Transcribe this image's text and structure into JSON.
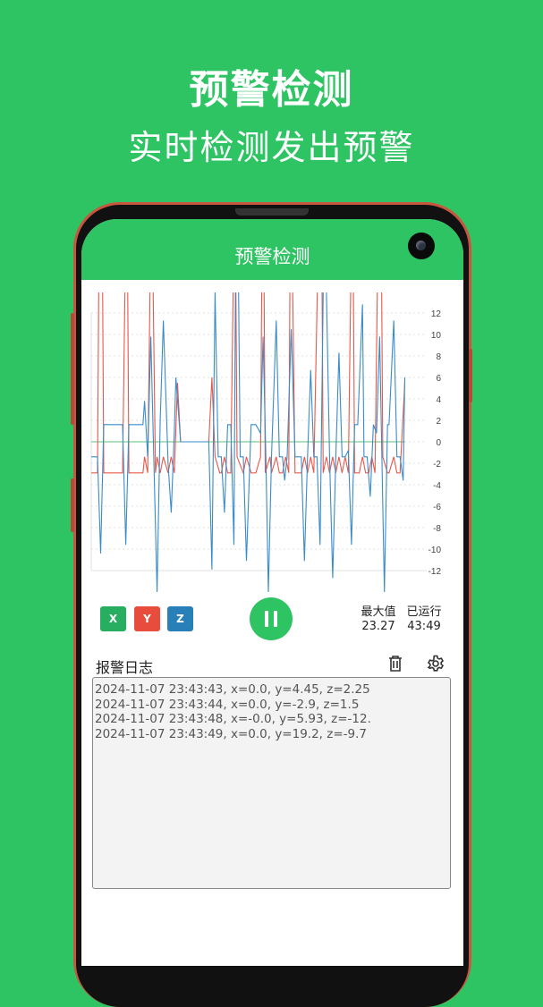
{
  "hero": {
    "title": "预警检测",
    "subtitle": "实时检测发出预警"
  },
  "app": {
    "title": "预警检测"
  },
  "colors": {
    "accent": "#2ec463",
    "x": "#27ae60",
    "y": "#e74c3c",
    "z": "#2980b9"
  },
  "axis_buttons": [
    {
      "label": "X",
      "color": "#27ae60"
    },
    {
      "label": "Y",
      "color": "#e74c3c"
    },
    {
      "label": "Z",
      "color": "#2980b9"
    }
  ],
  "controls": {
    "pause_icon": "pause-icon"
  },
  "stats": {
    "max_label": "最大值",
    "max_value": "23.27",
    "runtime_label": "已运行",
    "runtime_value": "43:49"
  },
  "log": {
    "title": "报警日志",
    "delete_icon": "trash-icon",
    "settings_icon": "gear-icon",
    "entries": [
      "2024-11-07 23:43:43, x=0.0, y=4.45, z=2.25",
      "2024-11-07 23:43:44, x=0.0, y=-2.9, z=1.5",
      "2024-11-07 23:43:48, x=-0.0, y=5.93, z=-12.",
      "2024-11-07 23:43:49, x=0.0, y=19.2, z=-9.7"
    ]
  },
  "chart_data": {
    "type": "line",
    "ylim": [
      -12,
      12
    ],
    "yticks": [
      "12",
      "10",
      "8",
      "6",
      "4",
      "2",
      "0",
      "-2",
      "-4",
      "-6",
      "-8",
      "-10",
      "-12"
    ],
    "ytick_values": [
      12,
      10,
      8,
      6,
      4,
      2,
      0,
      -2,
      -4,
      -6,
      -8,
      -10,
      -12
    ],
    "grid": true,
    "axis_position": "right",
    "xlim": [
      0,
      107
    ],
    "series": [
      {
        "key": "x",
        "color": "#5cc27a",
        "points": [
          [
            0,
            0
          ],
          [
            100,
            0
          ]
        ]
      },
      {
        "key": "y",
        "color": "#e8584a",
        "points": [
          [
            0,
            -2.9
          ],
          [
            2,
            -2.9
          ],
          [
            2.5,
            20
          ],
          [
            3.5,
            20
          ],
          [
            4,
            -2.9
          ],
          [
            10,
            -2.9
          ],
          [
            11,
            20
          ],
          [
            11.5,
            20
          ],
          [
            12,
            -2.9
          ],
          [
            16.5,
            -2.9
          ],
          [
            17,
            -1.4
          ],
          [
            18,
            -2.9
          ],
          [
            19,
            20
          ],
          [
            19.5,
            20
          ],
          [
            20.5,
            -2.9
          ],
          [
            21,
            -1.4
          ],
          [
            22,
            -2.9
          ],
          [
            23,
            -1.4
          ],
          [
            24.5,
            -2.9
          ],
          [
            25.5,
            -1.4
          ],
          [
            26.5,
            -2.9
          ],
          [
            27.5,
            5.5
          ],
          [
            28.5,
            0
          ],
          [
            37.5,
            0
          ],
          [
            38.5,
            6
          ],
          [
            39.5,
            -1.4
          ],
          [
            41,
            -2.9
          ],
          [
            41.5,
            -2.9
          ],
          [
            42.5,
            -1.4
          ],
          [
            43.5,
            -2.9
          ],
          [
            44.5,
            -2.9
          ],
          [
            45.5,
            20
          ],
          [
            46,
            20
          ],
          [
            46.5,
            -1.4
          ],
          [
            48.5,
            -2.9
          ],
          [
            49.5,
            -1.4
          ],
          [
            51,
            -2.9
          ],
          [
            52.5,
            -2.9
          ],
          [
            54,
            -1.4
          ],
          [
            54.5,
            20
          ],
          [
            55,
            20
          ],
          [
            55.5,
            -2.9
          ],
          [
            57,
            -1.4
          ],
          [
            57.5,
            -2.9
          ],
          [
            59,
            -1.4
          ],
          [
            60,
            -2.9
          ],
          [
            61,
            -2.9
          ],
          [
            62,
            -1.4
          ],
          [
            63,
            -2.9
          ],
          [
            63.5,
            20
          ],
          [
            64,
            20
          ],
          [
            65,
            -2.9
          ],
          [
            67,
            -2.9
          ],
          [
            68,
            -1.4
          ],
          [
            69,
            -2.9
          ],
          [
            70,
            -1.4
          ],
          [
            71,
            -2.9
          ],
          [
            72.5,
            20
          ],
          [
            73.5,
            20
          ],
          [
            74,
            -2.9
          ],
          [
            75,
            -1.4
          ],
          [
            76,
            -2.9
          ],
          [
            77,
            -1.4
          ],
          [
            78,
            -2.9
          ],
          [
            79,
            -1.4
          ],
          [
            80,
            -2.9
          ],
          [
            81,
            -1.4
          ],
          [
            82,
            -2.9
          ],
          [
            83,
            20
          ],
          [
            83.5,
            20
          ],
          [
            84,
            -2.9
          ],
          [
            85.5,
            -2.9
          ],
          [
            86.5,
            -1.4
          ],
          [
            87.5,
            -2.9
          ],
          [
            88.5,
            -2.9
          ],
          [
            89.5,
            -1.4
          ],
          [
            90.5,
            -2.9
          ],
          [
            91.5,
            20
          ],
          [
            92.5,
            20
          ],
          [
            93,
            -1.4
          ],
          [
            94.5,
            -2.9
          ],
          [
            95,
            -2.9
          ],
          [
            96.5,
            -1.4
          ],
          [
            97.5,
            -2.9
          ],
          [
            98.5,
            -2.9
          ],
          [
            100,
            5.5
          ]
        ]
      },
      {
        "key": "z",
        "color": "#3a8cc8",
        "points": [
          [
            0,
            -1.4
          ],
          [
            2,
            -1.4
          ],
          [
            3,
            -10.4
          ],
          [
            4,
            1.6
          ],
          [
            10,
            1.6
          ],
          [
            11,
            -9.6
          ],
          [
            12,
            1.6
          ],
          [
            16.5,
            1.6
          ],
          [
            17,
            3.8
          ],
          [
            18,
            -1.4
          ],
          [
            19,
            9.8
          ],
          [
            21,
            -14
          ],
          [
            22,
            2
          ],
          [
            23,
            11.3
          ],
          [
            24.5,
            -2
          ],
          [
            25.5,
            -6.6
          ],
          [
            26.5,
            1
          ],
          [
            27,
            6
          ],
          [
            28.5,
            0
          ],
          [
            37.5,
            0
          ],
          [
            38.5,
            -11.9
          ],
          [
            39.5,
            14
          ],
          [
            40.5,
            -1.4
          ],
          [
            41.5,
            -1.4
          ],
          [
            42.5,
            -6.6
          ],
          [
            43.5,
            1.6
          ],
          [
            44.5,
            1.6
          ],
          [
            45.5,
            -9.6
          ],
          [
            46,
            14
          ],
          [
            47,
            14
          ],
          [
            47.5,
            -1.4
          ],
          [
            48.5,
            -1.4
          ],
          [
            49.5,
            -11.1
          ],
          [
            51,
            1.6
          ],
          [
            52.5,
            1.6
          ],
          [
            54,
            0.8
          ],
          [
            54.8,
            9.8
          ],
          [
            55.7,
            -1.4
          ],
          [
            56.5,
            -14
          ],
          [
            57.5,
            -1.4
          ],
          [
            59,
            11.3
          ],
          [
            60,
            -1.4
          ],
          [
            61,
            -1.4
          ],
          [
            61.7,
            -3.6
          ],
          [
            62.5,
            -1.4
          ],
          [
            63.8,
            10.5
          ],
          [
            65,
            -1.4
          ],
          [
            67,
            -1.4
          ],
          [
            68,
            -11.1
          ],
          [
            69,
            -1.4
          ],
          [
            70,
            6.7
          ],
          [
            71,
            -1.4
          ],
          [
            72,
            -1.4
          ],
          [
            73,
            -9.6
          ],
          [
            74,
            14
          ],
          [
            75,
            14
          ],
          [
            76,
            -1.4
          ],
          [
            77,
            -12.7
          ],
          [
            78,
            -1.4
          ],
          [
            79,
            8.3
          ],
          [
            80,
            -1.4
          ],
          [
            81,
            -1.4
          ],
          [
            82,
            -0.8
          ],
          [
            83,
            -9.6
          ],
          [
            84,
            1.6
          ],
          [
            85,
            1.6
          ],
          [
            86.5,
            12.8
          ],
          [
            87,
            -1.4
          ],
          [
            88,
            -1.4
          ],
          [
            89,
            -5.1
          ],
          [
            90,
            1.6
          ],
          [
            91,
            0.8
          ],
          [
            92,
            9.8
          ],
          [
            93.5,
            -14
          ],
          [
            94.5,
            1.6
          ],
          [
            95,
            1.6
          ],
          [
            96.5,
            11.3
          ],
          [
            97.5,
            -1.4
          ],
          [
            98.5,
            -1.4
          ],
          [
            99.5,
            -3.6
          ],
          [
            100,
            6
          ]
        ]
      }
    ]
  }
}
